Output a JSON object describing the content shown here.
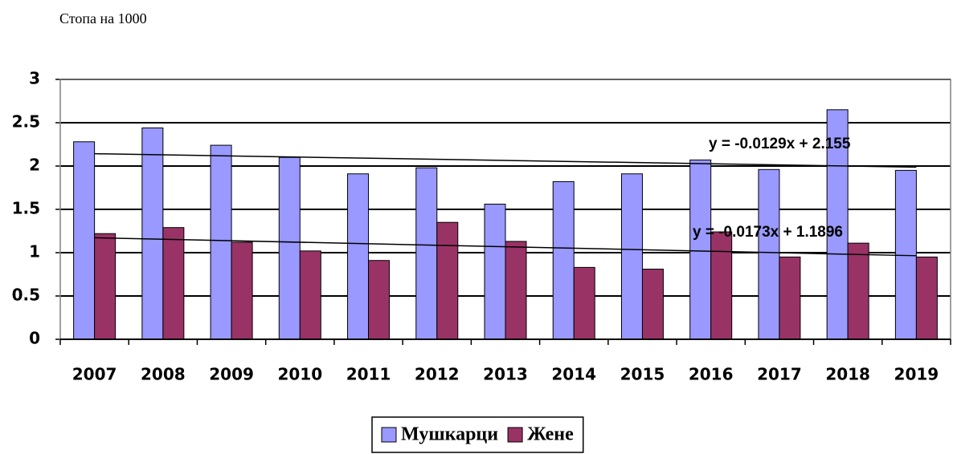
{
  "chart_data": {
    "type": "bar",
    "subtitle": "Стопа на 1000",
    "categories": [
      "2007",
      "2008",
      "2009",
      "2010",
      "2011",
      "2012",
      "2013",
      "2014",
      "2015",
      "2016",
      "2017",
      "2018",
      "2019"
    ],
    "series": [
      {
        "name": "Мушкарци",
        "color": "#9999ff",
        "values": [
          2.28,
          2.44,
          2.24,
          2.1,
          1.91,
          1.98,
          1.56,
          1.82,
          1.91,
          2.07,
          1.96,
          2.65,
          1.95
        ]
      },
      {
        "name": "Жене",
        "color": "#993366",
        "values": [
          1.22,
          1.29,
          1.12,
          1.02,
          0.91,
          1.35,
          1.13,
          0.83,
          0.81,
          1.24,
          0.95,
          1.11,
          0.95
        ]
      }
    ],
    "trendlines": [
      {
        "label": "y = -0.0129x + 2.155",
        "slope": -0.0129,
        "intercept": 2.155
      },
      {
        "label": "y = -0.0173x + 1.1896",
        "slope": -0.0173,
        "intercept": 1.1896
      }
    ],
    "ylim": [
      0,
      3
    ],
    "yticks": [
      0,
      0.5,
      1,
      1.5,
      2,
      2.5,
      3
    ],
    "grid": true,
    "legend": "bottom"
  }
}
